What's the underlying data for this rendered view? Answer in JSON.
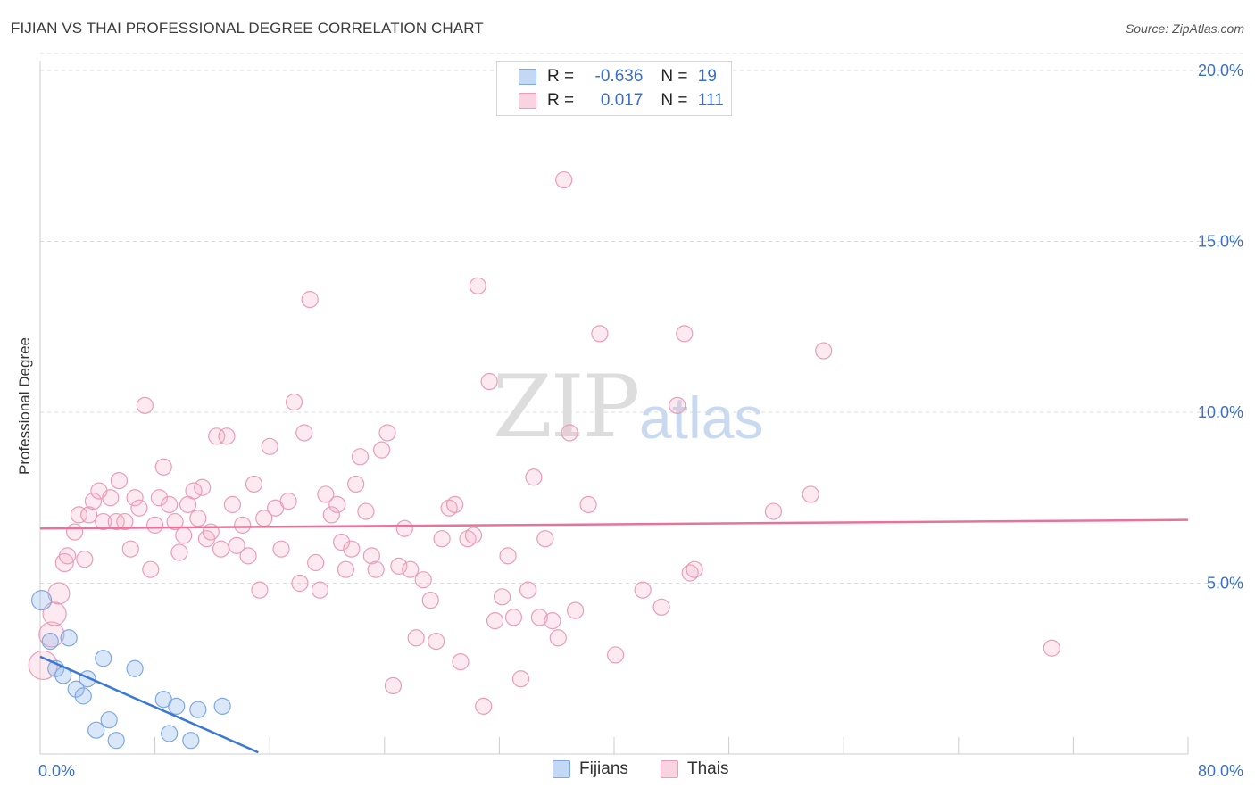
{
  "header": {
    "title": "FIJIAN VS THAI PROFESSIONAL DEGREE CORRELATION CHART",
    "source": "Source: ZipAtlas.com"
  },
  "watermark": {
    "part1": "ZIP",
    "part2": "atlas"
  },
  "legend": {
    "r_label": "R =",
    "n_label": "N =",
    "rows": [
      {
        "name": "Fijians",
        "r": "-0.636",
        "n": "19",
        "color": "#a9c8f0",
        "border": "#6f9fe0"
      },
      {
        "name": "Thais",
        "r": "0.017",
        "n": "111",
        "color": "#f6c3d4",
        "border": "#ec8fb0"
      }
    ]
  },
  "colors": {
    "fijian_fill": "rgba(150,185,235,0.35)",
    "fijian_stroke": "#7fa8e2",
    "fijian_line": "#3a78d4",
    "thai_fill": "rgba(242,170,195,0.25)",
    "thai_stroke": "#ec9cb8",
    "thai_line": "#e8739a",
    "grid": "#dcdcdc",
    "axis": "#cccccc",
    "tick_label": "#3a6fc9"
  },
  "chart_data": {
    "type": "scatter",
    "title": "FIJIAN VS THAI PROFESSIONAL DEGREE CORRELATION CHART",
    "xlabel": "",
    "ylabel": "Professional Degree",
    "xlim": [
      0,
      80
    ],
    "ylim": [
      0,
      20.5
    ],
    "x_tick_labels": [
      {
        "v": 0,
        "label": "0.0%"
      },
      {
        "v": 80,
        "label": "80.0%"
      }
    ],
    "y_ticks": [
      {
        "v": 5,
        "label": "5.0%"
      },
      {
        "v": 10,
        "label": "10.0%"
      },
      {
        "v": 15,
        "label": "15.0%"
      },
      {
        "v": 20,
        "label": "20.0%"
      }
    ],
    "series": [
      {
        "name": "Fijians",
        "trend": [
          [
            0.0,
            2.85
          ],
          [
            15.2,
            0.05
          ]
        ],
        "points": [
          [
            0.1,
            4.5,
            11
          ],
          [
            0.7,
            3.3,
            9
          ],
          [
            1.1,
            2.5,
            9
          ],
          [
            1.6,
            2.3,
            9
          ],
          [
            2.0,
            3.4,
            9
          ],
          [
            2.5,
            1.9,
            9
          ],
          [
            3.0,
            1.7,
            9
          ],
          [
            3.3,
            2.2,
            9
          ],
          [
            3.9,
            0.7,
            9
          ],
          [
            4.4,
            2.8,
            9
          ],
          [
            4.8,
            1.0,
            9
          ],
          [
            5.3,
            0.4,
            9
          ],
          [
            6.6,
            2.5,
            9
          ],
          [
            8.6,
            1.6,
            9
          ],
          [
            9.0,
            0.6,
            9
          ],
          [
            9.5,
            1.4,
            9
          ],
          [
            10.5,
            0.4,
            9
          ],
          [
            11.0,
            1.3,
            9
          ],
          [
            12.7,
            1.4,
            9
          ]
        ]
      },
      {
        "name": "Thais",
        "trend": [
          [
            0.0,
            6.6
          ],
          [
            80.0,
            6.85
          ]
        ],
        "points": [
          [
            0.2,
            2.6,
            16
          ],
          [
            0.8,
            3.5,
            14
          ],
          [
            1.0,
            4.1,
            13
          ],
          [
            1.3,
            4.7,
            12
          ],
          [
            1.7,
            5.6,
            10
          ],
          [
            1.9,
            5.8,
            9
          ],
          [
            2.4,
            6.5,
            9
          ],
          [
            2.7,
            7.0,
            9
          ],
          [
            3.1,
            5.7,
            9
          ],
          [
            3.4,
            7.0,
            9
          ],
          [
            3.7,
            7.4,
            9
          ],
          [
            4.1,
            7.7,
            9
          ],
          [
            4.4,
            6.8,
            9
          ],
          [
            4.9,
            7.5,
            9
          ],
          [
            5.3,
            6.8,
            9
          ],
          [
            5.5,
            8.0,
            9
          ],
          [
            5.9,
            6.8,
            9
          ],
          [
            6.3,
            6.0,
            9
          ],
          [
            6.6,
            7.5,
            9
          ],
          [
            6.9,
            7.2,
            9
          ],
          [
            7.3,
            10.2,
            9
          ],
          [
            7.7,
            5.4,
            9
          ],
          [
            8.0,
            6.7,
            9
          ],
          [
            8.3,
            7.5,
            9
          ],
          [
            8.6,
            8.4,
            9
          ],
          [
            9.0,
            7.3,
            9
          ],
          [
            9.4,
            6.8,
            9
          ],
          [
            9.7,
            5.9,
            9
          ],
          [
            10.0,
            6.4,
            9
          ],
          [
            10.3,
            7.3,
            9
          ],
          [
            10.7,
            7.7,
            9
          ],
          [
            11.0,
            6.9,
            9
          ],
          [
            11.3,
            7.8,
            9
          ],
          [
            11.6,
            6.3,
            9
          ],
          [
            11.9,
            6.5,
            9
          ],
          [
            12.3,
            9.3,
            9
          ],
          [
            12.6,
            6.0,
            9
          ],
          [
            13.0,
            9.3,
            9
          ],
          [
            13.4,
            7.3,
            9
          ],
          [
            13.7,
            6.1,
            9
          ],
          [
            14.1,
            6.7,
            9
          ],
          [
            14.5,
            5.8,
            9
          ],
          [
            14.9,
            7.9,
            9
          ],
          [
            15.3,
            4.8,
            9
          ],
          [
            15.6,
            6.9,
            9
          ],
          [
            16.0,
            9.0,
            9
          ],
          [
            16.4,
            7.2,
            9
          ],
          [
            16.8,
            6.0,
            9
          ],
          [
            17.3,
            7.4,
            9
          ],
          [
            17.7,
            10.3,
            9
          ],
          [
            18.1,
            5.0,
            9
          ],
          [
            18.4,
            9.4,
            9
          ],
          [
            18.8,
            13.3,
            9
          ],
          [
            19.2,
            5.6,
            9
          ],
          [
            19.5,
            4.8,
            9
          ],
          [
            19.9,
            7.6,
            9
          ],
          [
            20.3,
            7.0,
            9
          ],
          [
            20.7,
            7.3,
            9
          ],
          [
            21.0,
            6.2,
            9
          ],
          [
            21.3,
            5.4,
            9
          ],
          [
            21.7,
            6.0,
            9
          ],
          [
            22.0,
            7.9,
            9
          ],
          [
            22.3,
            8.7,
            9
          ],
          [
            22.7,
            7.1,
            9
          ],
          [
            23.1,
            5.8,
            9
          ],
          [
            23.4,
            5.4,
            9
          ],
          [
            23.8,
            8.9,
            9
          ],
          [
            24.2,
            9.4,
            9
          ],
          [
            24.6,
            2.0,
            9
          ],
          [
            25.0,
            5.5,
            9
          ],
          [
            25.4,
            6.6,
            9
          ],
          [
            25.8,
            5.4,
            9
          ],
          [
            26.2,
            3.4,
            9
          ],
          [
            26.7,
            5.1,
            9
          ],
          [
            27.2,
            4.5,
            9
          ],
          [
            27.6,
            3.3,
            9
          ],
          [
            28.0,
            6.3,
            9
          ],
          [
            28.5,
            7.2,
            9
          ],
          [
            28.9,
            7.3,
            9
          ],
          [
            29.3,
            2.7,
            9
          ],
          [
            29.8,
            6.3,
            9
          ],
          [
            30.2,
            6.4,
            9
          ],
          [
            30.5,
            13.7,
            9
          ],
          [
            30.9,
            1.4,
            9
          ],
          [
            31.3,
            10.9,
            9
          ],
          [
            31.7,
            3.9,
            9
          ],
          [
            32.2,
            4.6,
            9
          ],
          [
            32.6,
            5.8,
            9
          ],
          [
            33.0,
            4.0,
            9
          ],
          [
            33.5,
            2.2,
            9
          ],
          [
            34.0,
            4.8,
            9
          ],
          [
            34.4,
            8.1,
            9
          ],
          [
            34.8,
            4.0,
            9
          ],
          [
            35.2,
            6.3,
            9
          ],
          [
            35.7,
            3.9,
            9
          ],
          [
            36.1,
            3.4,
            9
          ],
          [
            36.5,
            16.8,
            9
          ],
          [
            36.9,
            9.4,
            9
          ],
          [
            37.3,
            4.2,
            9
          ],
          [
            38.2,
            7.3,
            9
          ],
          [
            39.0,
            12.3,
            9
          ],
          [
            40.1,
            2.9,
            9
          ],
          [
            42.0,
            4.8,
            9
          ],
          [
            43.3,
            4.3,
            9
          ],
          [
            44.4,
            10.2,
            9
          ],
          [
            44.9,
            12.3,
            9
          ],
          [
            45.3,
            5.3,
            9
          ],
          [
            45.6,
            5.4,
            9
          ],
          [
            51.1,
            7.1,
            9
          ],
          [
            53.7,
            7.6,
            9
          ],
          [
            54.6,
            11.8,
            9
          ],
          [
            70.5,
            3.1,
            9
          ]
        ]
      }
    ]
  }
}
